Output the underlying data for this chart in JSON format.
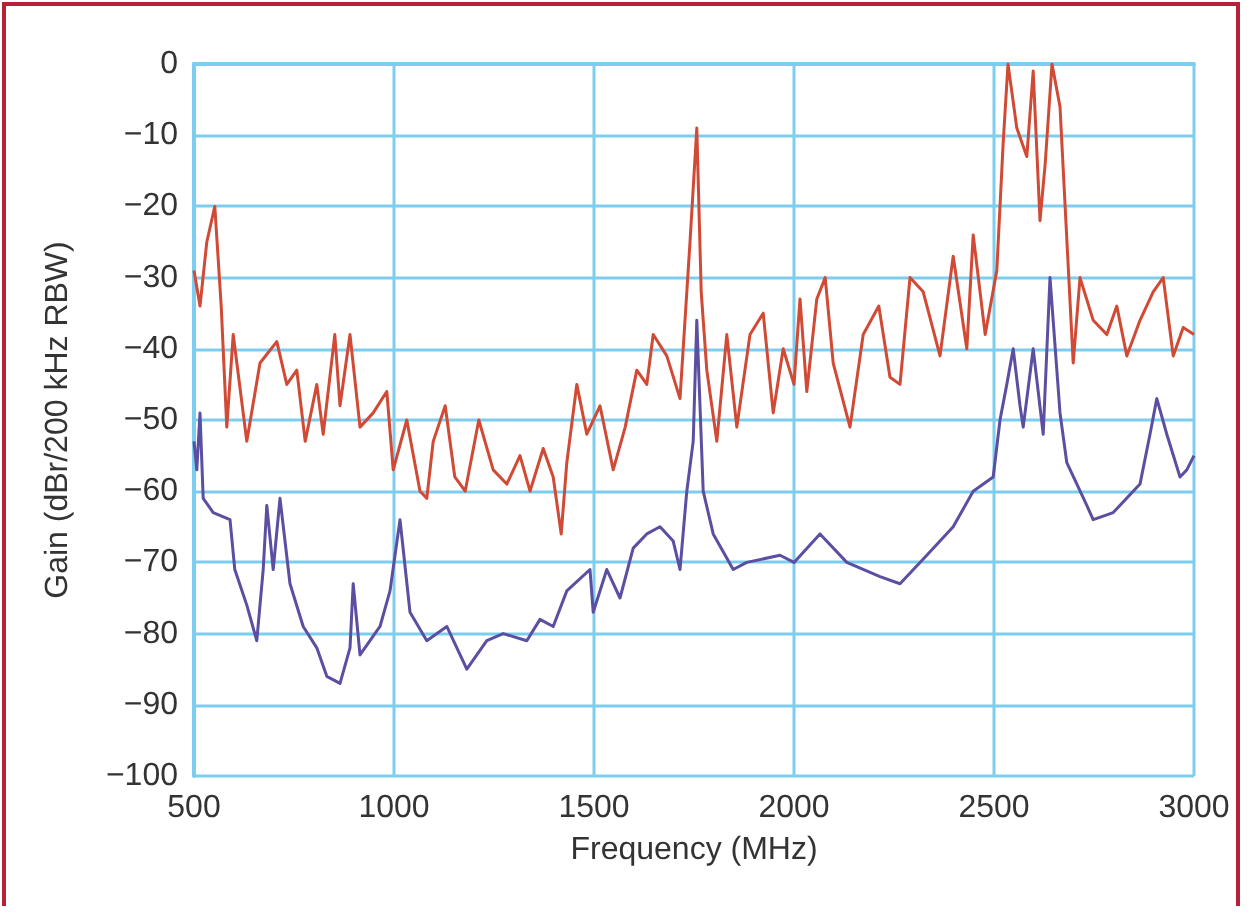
{
  "chart_data": {
    "type": "line",
    "xlabel": "Frequency (MHz)",
    "ylabel": "Gain (dBr/200 kHz RBW)",
    "xlim": [
      500,
      3000
    ],
    "xticks": [
      500,
      1000,
      1500,
      2000,
      2500,
      3000
    ],
    "ylim": [
      -100,
      0
    ],
    "yticks": [
      {
        "value": -100,
        "label": "−100"
      },
      {
        "value": -90,
        "label": "−90"
      },
      {
        "value": -80,
        "label": "−80"
      },
      {
        "value": -70,
        "label": "−70"
      },
      {
        "value": -60,
        "label": "−60"
      },
      {
        "value": -50,
        "label": "−50"
      },
      {
        "value": -40,
        "label": "−40"
      },
      {
        "value": -30,
        "label": "−30"
      },
      {
        "value": -20,
        "label": "−20"
      },
      {
        "value": -10,
        "label": "−10"
      },
      0
    ],
    "grid": true,
    "marker": "none",
    "line_style": "solid",
    "series": [
      {
        "color": "#d04a35",
        "x": [
          500,
          515,
          532,
          552,
          568,
          582,
          598,
          632,
          665,
          707,
          732,
          757,
          778,
          807,
          823,
          852,
          865,
          890,
          915,
          948,
          982,
          998,
          1032,
          1065,
          1082,
          1098,
          1128,
          1152,
          1178,
          1212,
          1248,
          1282,
          1315,
          1340,
          1373,
          1398,
          1418,
          1432,
          1457,
          1482,
          1515,
          1548,
          1578,
          1607,
          1632,
          1648,
          1682,
          1715,
          1740,
          1757,
          1768,
          1782,
          1807,
          1832,
          1857,
          1890,
          1923,
          1948,
          1973,
          2000,
          2015,
          2032,
          2057,
          2078,
          2098,
          2140,
          2173,
          2212,
          2240,
          2265,
          2290,
          2323,
          2365,
          2398,
          2432,
          2448,
          2478,
          2507,
          2523,
          2535,
          2557,
          2582,
          2598,
          2615,
          2628,
          2645,
          2665,
          2698,
          2715,
          2748,
          2782,
          2807,
          2832,
          2865,
          2898,
          2923,
          2948,
          2973,
          3000
        ],
        "values": [
          -29,
          -34,
          -25,
          -20,
          -34,
          -51,
          -38,
          -53,
          -42,
          -39,
          -45,
          -43,
          -53,
          -45,
          -52,
          -38,
          -48,
          -38,
          -51,
          -49,
          -46,
          -57,
          -50,
          -60,
          -61,
          -53,
          -48,
          -58,
          -60,
          -50,
          -57,
          -59,
          -55,
          -60,
          -54,
          -58,
          -66,
          -56,
          -45,
          -52,
          -48,
          -57,
          -51,
          -43,
          -45,
          -38,
          -41,
          -47,
          -25,
          -9,
          -32,
          -43,
          -53,
          -38,
          -51,
          -38,
          -35,
          -49,
          -40,
          -45,
          -33,
          -46,
          -33,
          -30,
          -42,
          -51,
          -38,
          -34,
          -44,
          -45,
          -30,
          -32,
          -41,
          -27,
          -40,
          -24,
          -38,
          -29,
          -11,
          0,
          -9,
          -13,
          -1,
          -22,
          -14,
          0,
          -6,
          -42,
          -30,
          -36,
          -38,
          -34,
          -41,
          -36,
          -32,
          -30,
          -41,
          -37,
          -38
        ]
      },
      {
        "color": "#5a4fa0",
        "x": [
          500,
          507,
          515,
          523,
          548,
          590,
          602,
          632,
          657,
          673,
          682,
          698,
          715,
          740,
          773,
          807,
          832,
          865,
          890,
          898,
          915,
          965,
          990,
          1015,
          1040,
          1082,
          1132,
          1182,
          1232,
          1273,
          1332,
          1365,
          1398,
          1432,
          1490,
          1498,
          1532,
          1565,
          1598,
          1632,
          1665,
          1698,
          1715,
          1732,
          1748,
          1757,
          1773,
          1798,
          1848,
          1882,
          1965,
          2000,
          2065,
          2132,
          2215,
          2265,
          2332,
          2398,
          2448,
          2498,
          2515,
          2532,
          2548,
          2565,
          2573,
          2598,
          2623,
          2640,
          2665,
          2682,
          2732,
          2748,
          2798,
          2865,
          2890,
          2907,
          2932,
          2965,
          2982,
          3000
        ],
        "values": [
          -53,
          -57,
          -49,
          -61,
          -63,
          -64,
          -71,
          -76,
          -81,
          -71,
          -62,
          -71,
          -61,
          -73,
          -79,
          -82,
          -86,
          -87,
          -82,
          -73,
          -83,
          -79,
          -74,
          -64,
          -77,
          -81,
          -79,
          -85,
          -81,
          -80,
          -81,
          -78,
          -79,
          -74,
          -71,
          -77,
          -71,
          -75,
          -68,
          -66,
          -65,
          -67,
          -71,
          -60,
          -53,
          -36,
          -60,
          -66,
          -71,
          -70,
          -69,
          -70,
          -66,
          -70,
          -72,
          -73,
          -69,
          -65,
          -60,
          -58,
          -50,
          -45,
          -40,
          -48,
          -51,
          -40,
          -52,
          -30,
          -49,
          -56,
          -62,
          -64,
          -63,
          -59,
          -52,
          -47,
          -52,
          -58,
          -57,
          -55
        ]
      }
    ]
  }
}
